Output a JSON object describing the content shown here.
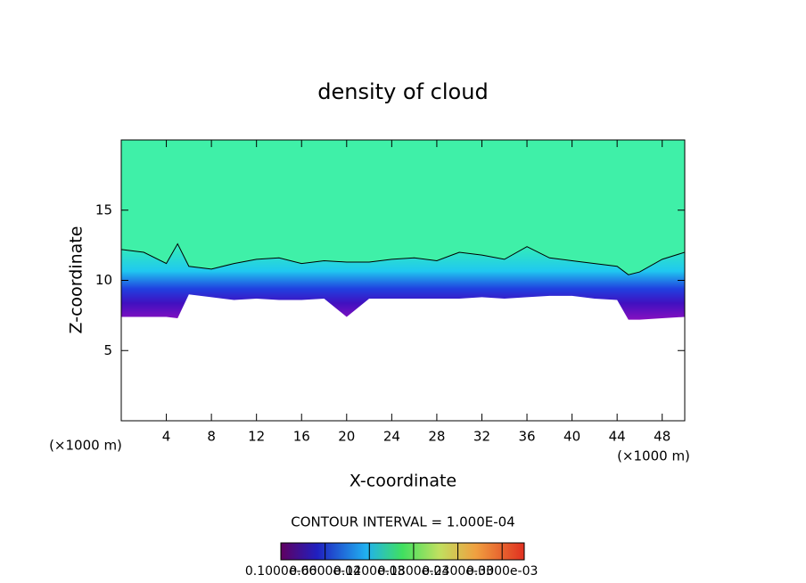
{
  "chart_data": {
    "type": "contour",
    "title": "density of cloud",
    "x_label": "X-coordinate",
    "y_label": "Z-coordinate",
    "x_unit": "(×1000 m)",
    "y_unit": "(×1000 m)",
    "contour_interval": "CONTOUR INTERVAL = 1.000E-04",
    "x": [
      0,
      2,
      4,
      5,
      6,
      8,
      10,
      12,
      14,
      16,
      18,
      20,
      22,
      24,
      26,
      28,
      30,
      32,
      34,
      36,
      38,
      40,
      42,
      44,
      45,
      46,
      48,
      50
    ],
    "series": [
      {
        "color": "#000000",
        "values": [
          12.2,
          12.0,
          11.2,
          12.6,
          11.0,
          10.8,
          11.2,
          11.5,
          11.6,
          11.2,
          11.4,
          11.3,
          11.3,
          11.5,
          11.6,
          11.4,
          12.0,
          11.8,
          11.5,
          12.4,
          11.6,
          11.4,
          11.2,
          11.0,
          10.4,
          10.6,
          11.5,
          12.0
        ]
      },
      {
        "color": "#ffffff",
        "values": [
          7.4,
          7.4,
          7.4,
          7.3,
          9.0,
          8.8,
          8.6,
          8.7,
          8.6,
          8.6,
          8.7,
          7.4,
          8.7,
          8.7,
          8.7,
          8.7,
          8.7,
          8.8,
          8.7,
          8.8,
          8.9,
          8.9,
          8.7,
          8.6,
          7.2,
          7.2,
          7.3,
          7.4
        ]
      }
    ],
    "xlim": [
      0,
      50
    ],
    "xticks": [
      4,
      8,
      12,
      16,
      20,
      24,
      28,
      32,
      36,
      40,
      44,
      48
    ],
    "ylim": [
      0,
      20
    ],
    "yticks": [
      5,
      10,
      15
    ],
    "colorbar_lim": [
      0,
      0.00033
    ],
    "colorbar_ticks": [
      {
        "value": 1e-07,
        "label": "0.1000e-06"
      },
      {
        "value": 6e-05,
        "label": "0.6000e-04"
      },
      {
        "value": 0.00012,
        "label": "0.1200e-03"
      },
      {
        "value": 0.00018,
        "label": "0.1800e-03"
      },
      {
        "value": 0.00024,
        "label": "0.2400e-03"
      },
      {
        "value": 0.0003,
        "label": "0.3000e-03"
      }
    ]
  }
}
